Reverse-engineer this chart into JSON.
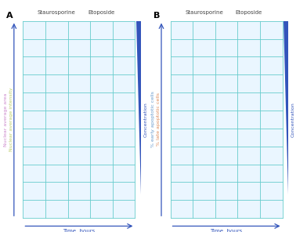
{
  "panel_A": {
    "label": "A",
    "title_stauro": "Staurosporine",
    "title_etopo": "Etoposide",
    "ylabel1": "Nuclear average area",
    "ylabel2": "Nuclear average intensity",
    "xlabel": "Time, hours",
    "conc_label": "Concentration",
    "line_color1": "#cc88cc",
    "line_color2": "#bbcc66",
    "grid_color": "#66cccc",
    "bg_color": "#eaf6ff"
  },
  "panel_B": {
    "label": "B",
    "title_stauro": "Staurosporine",
    "title_etopo": "Etoposide",
    "ylabel1": "% early apoptotic cells",
    "ylabel2": "% late apoptotic cells",
    "xlabel": "Time, hours",
    "conc_label": "Concentration",
    "line_color1": "#6699cc",
    "line_color2": "#dd8855",
    "grid_color": "#66cccc",
    "bg_color": "#eaf6ff"
  },
  "conc_triangle_color": "#3355bb",
  "arrow_color": "#3355bb",
  "figure_bg": "#ffffff",
  "total_rows": 11,
  "total_cols": 5,
  "cols_stauro": 3,
  "cols_etopo": 2
}
